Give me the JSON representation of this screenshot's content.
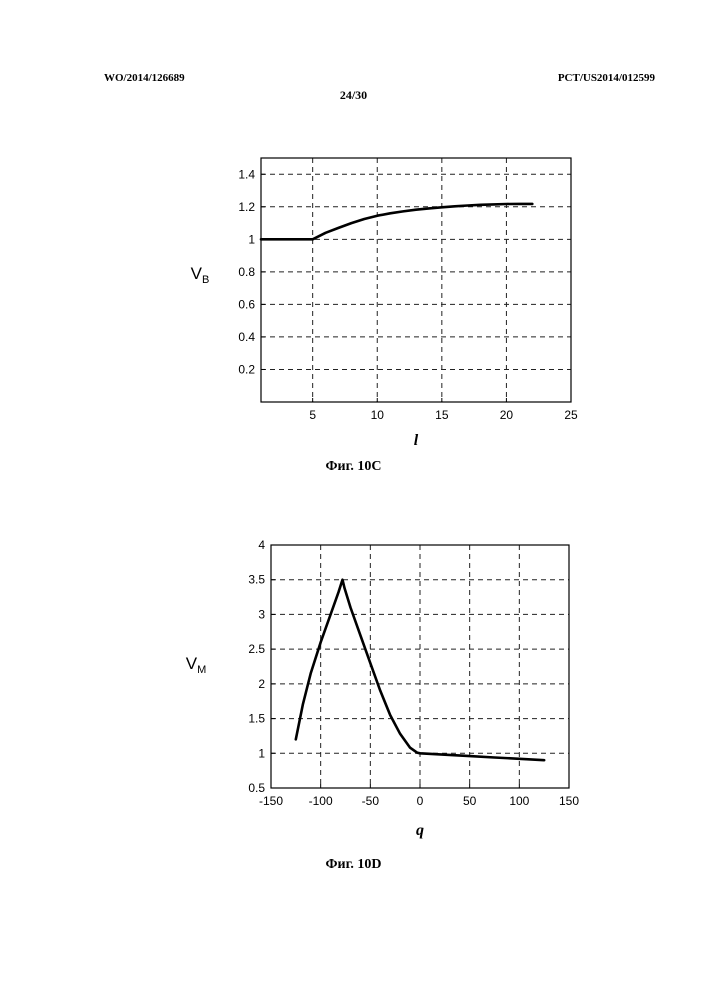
{
  "header": {
    "left": "WO/2014/126689",
    "right": "PCT/US2014/012599",
    "page": "24/30"
  },
  "chart_data": [
    {
      "type": "line",
      "caption": "Фиг. 10С",
      "ylabel_main": "V",
      "ylabel_sub": "B",
      "xlabel": "l",
      "xlim": [
        1,
        25
      ],
      "ylim": [
        0,
        1.5
      ],
      "xticks": [
        5,
        10,
        15,
        20,
        25
      ],
      "yticks": [
        0.2,
        0.4,
        0.6,
        0.8,
        1,
        1.2,
        1.4
      ],
      "grid": true,
      "series": [
        {
          "x": [
            1,
            5,
            6,
            7,
            8,
            9,
            10,
            11,
            12,
            13,
            14,
            15,
            16,
            17,
            18,
            19,
            20,
            21,
            22
          ],
          "y": [
            1.0,
            1.0,
            1.04,
            1.07,
            1.1,
            1.125,
            1.145,
            1.16,
            1.172,
            1.182,
            1.19,
            1.197,
            1.203,
            1.208,
            1.212,
            1.215,
            1.217,
            1.218,
            1.218
          ]
        }
      ]
    },
    {
      "type": "line",
      "caption": "Фиг. 10D",
      "ylabel_main": "V",
      "ylabel_sub": "M",
      "xlabel": "q",
      "xlim": [
        -150,
        150
      ],
      "ylim": [
        0.5,
        4
      ],
      "xticks": [
        -150,
        -100,
        -50,
        0,
        50,
        100,
        150
      ],
      "yticks": [
        0.5,
        1,
        1.5,
        2,
        2.5,
        3,
        3.5,
        4
      ],
      "grid": true,
      "series": [
        {
          "x": [
            -125,
            -118,
            -110,
            -100,
            -90,
            -82,
            -78,
            -76,
            -70,
            -60,
            -50,
            -40,
            -30,
            -20,
            -10,
            -3,
            0,
            25,
            50,
            75,
            100,
            125
          ],
          "y": [
            1.2,
            1.7,
            2.15,
            2.6,
            3.0,
            3.32,
            3.5,
            3.38,
            3.1,
            2.7,
            2.3,
            1.9,
            1.55,
            1.28,
            1.08,
            1.01,
            1.0,
            0.98,
            0.96,
            0.94,
            0.92,
            0.9
          ]
        }
      ]
    }
  ]
}
